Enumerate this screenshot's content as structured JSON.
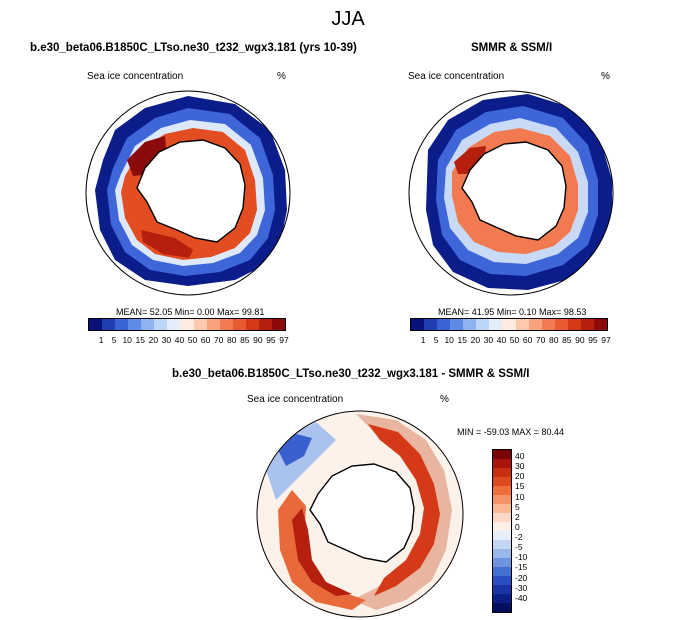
{
  "title": "JJA",
  "panels": {
    "model": {
      "title": "b.e30_beta06.B1850C_LTso.ne30_t232_wgx3.181 (yrs 10-39)",
      "variable": "Sea ice concentration",
      "units": "%",
      "stats": "MEAN=  52.05  Min=   0.00  Max=  99.81"
    },
    "obs": {
      "title": "SMMR & SSM/I",
      "variable": "Sea ice concentration",
      "units": "%",
      "stats": "MEAN=  41.95  Min=   0.10  Max=  98.53"
    },
    "diff": {
      "title": "b.e30_beta06.B1850C_LTso.ne30_t232_wgx3.181 - SMMR & SSM/I",
      "variable": "Sea ice concentration",
      "units": "%",
      "stats": "MIN = -59.03 MAX =  80.44"
    }
  },
  "abs_colorbar": {
    "colors": [
      "#08127a",
      "#1f3eb0",
      "#3b63d6",
      "#5f8be6",
      "#8db4f0",
      "#bcd6f7",
      "#e4eefb",
      "#fdebe0",
      "#fbc9ac",
      "#f8a37e",
      "#f27a50",
      "#e85a30",
      "#d43a18",
      "#b5200e",
      "#8b0a0a"
    ],
    "labels": [
      "1",
      "5",
      "10",
      "15",
      "20",
      "30",
      "40",
      "50",
      "60",
      "70",
      "80",
      "85",
      "90",
      "95",
      "97"
    ]
  },
  "diff_colorbar": {
    "colors": [
      "#7a0505",
      "#a8150c",
      "#c92d12",
      "#dd4a1e",
      "#ee6e3c",
      "#f69468",
      "#fab796",
      "#fcd9c4",
      "#fdf0e8",
      "#e8eef9",
      "#c5d6f2",
      "#9ab8ea",
      "#6c94df",
      "#4470d2",
      "#2b4ec0",
      "#1b34a4",
      "#0c1f84",
      "#050f5e"
    ],
    "labels": [
      "40",
      "30",
      "20",
      "15",
      "10",
      "5",
      "2",
      "0",
      "-2",
      "-5",
      "-10",
      "-15",
      "-20",
      "-30",
      "-40"
    ]
  }
}
